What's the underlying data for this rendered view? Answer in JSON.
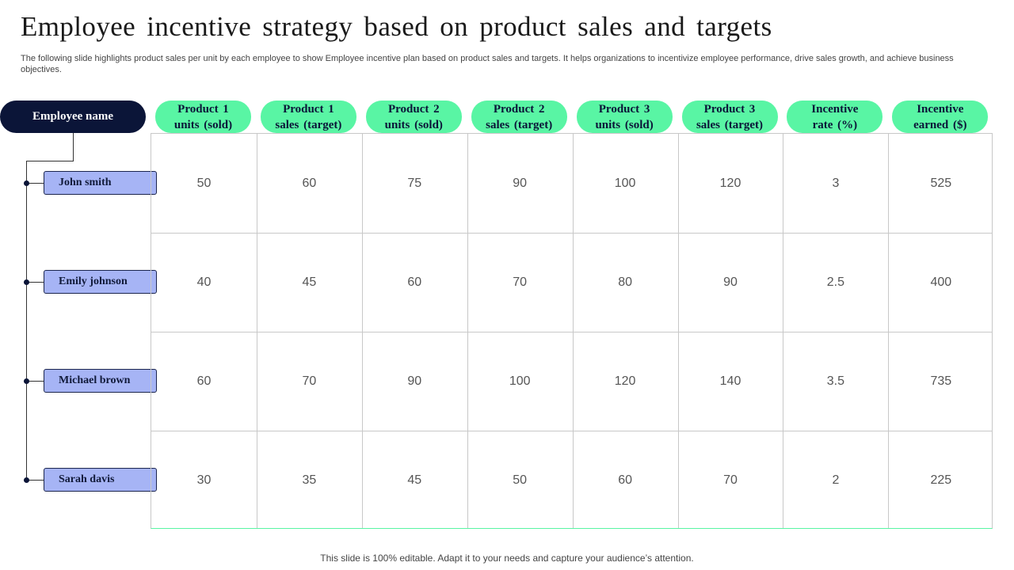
{
  "slide": {
    "title": "Employee incentive strategy based on product sales and targets",
    "subtitle": "The following slide highlights product sales per unit by each employee to show Employee incentive plan based on product sales and targets. It helps organizations to  incentivize employee performance, drive sales growth, and achieve business objectives.",
    "footer": "This slide is 100% editable. Adapt it to your needs and capture your audience’s attention."
  },
  "table": {
    "row_header": "Employee name",
    "columns": [
      "Product  1\nunits  (sold)",
      "Product  1\nsales (target)",
      "Product  2\nunits  (sold)",
      "Product  2\nsales (target)",
      "Product  3\nunits  (sold)",
      "Product  3\nsales (target)",
      "Incentive\nrate  (%)",
      "Incentive\nearned  ($)"
    ],
    "rows": [
      {
        "name": "John smith",
        "values": [
          "50",
          "60",
          "75",
          "90",
          "100",
          "120",
          "3",
          "525"
        ]
      },
      {
        "name": "Emily johnson",
        "values": [
          "40",
          "45",
          "60",
          "70",
          "80",
          "90",
          "2.5",
          "400"
        ]
      },
      {
        "name": "Michael brown",
        "values": [
          "60",
          "70",
          "90",
          "100",
          "120",
          "140",
          "3.5",
          "735"
        ]
      },
      {
        "name": "Sarah davis",
        "values": [
          "30",
          "35",
          "45",
          "50",
          "60",
          "70",
          "2",
          "225"
        ]
      }
    ]
  },
  "colors": {
    "header_dark": "#0b1538",
    "column_pill": "#59f5a4",
    "name_box": "#a6b4f5"
  }
}
